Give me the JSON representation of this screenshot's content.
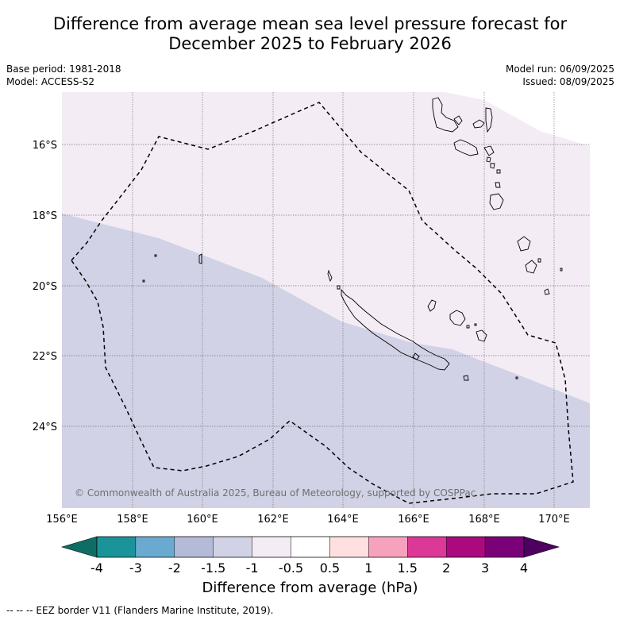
{
  "title_line1": "Difference from average mean sea level pressure forecast for",
  "title_line2": "December 2025 to February 2026",
  "base_period": "Base period: 1981-2018",
  "model": "Model: ACCESS-S2",
  "model_run": "Model run: 06/09/2025",
  "issued": "Issued: 08/09/2025",
  "copyright": "© Commonwealth of Australia 2025, Bureau of Meteorology, supported by COSPPac",
  "lat_labels": [
    "16°S",
    "18°S",
    "20°S",
    "22°S",
    "24°S"
  ],
  "lon_labels": [
    "156°E",
    "158°E",
    "160°E",
    "162°E",
    "164°E",
    "166°E",
    "168°E",
    "170°E"
  ],
  "colorbar": {
    "label": "Difference from average (hPa)",
    "ticks": [
      "-4",
      "-3",
      "-2",
      "-1.5",
      "-1",
      "-0.5",
      "0.5",
      "1",
      "1.5",
      "2",
      "3",
      "4"
    ],
    "colors": [
      "#0e6e66",
      "#1b9499",
      "#6aaad0",
      "#b3bbd6",
      "#d1d2e6",
      "#f4ecf5",
      "#ffffff",
      "#fde0df",
      "#f7a2bc",
      "#dc3898",
      "#aa0a7e",
      "#7b0179",
      "#4e0060"
    ]
  },
  "map": {
    "upper_region_color": "#f4ecf5",
    "lower_region_color": "#d1d2e6",
    "eez_style": "dashed"
  },
  "footer_note": "--  --  -- EEZ border V11 (Flanders Marine Institute, 2019)."
}
